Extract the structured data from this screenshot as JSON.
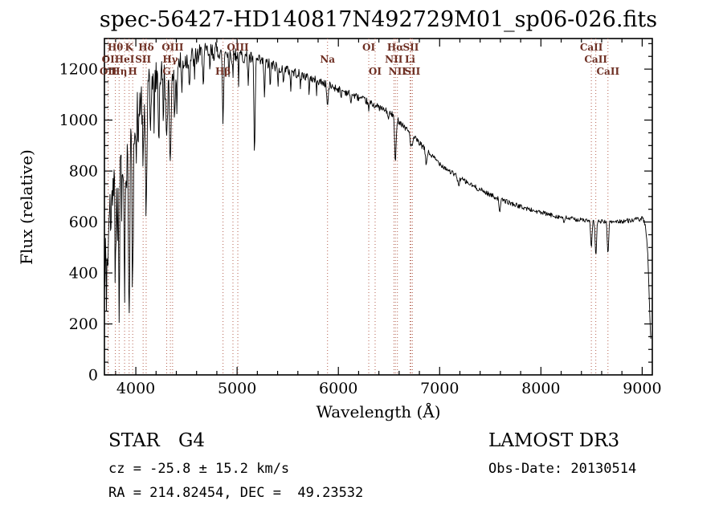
{
  "colors": {
    "background": "#ffffff",
    "axis": "#000000",
    "spectrum": "#000000",
    "marker_line": "#b4604f",
    "marker_label": "#6e2f23"
  },
  "footer": {
    "class_label": "STAR",
    "subclass": "G4",
    "cz": "cz = -25.8 ± 15.2 km/s",
    "ra_dec": "RA = 214.82454, DEC =  49.23532",
    "survey": "LAMOST DR3",
    "obs_date": "Obs-Date: 20130514"
  },
  "chart_data": {
    "type": "line",
    "title": "spec-56427-HD140817N492729M01_sp06-026.fits",
    "xlabel": "Wavelength (Å)",
    "ylabel": "Flux (relative)",
    "xlim": [
      3690,
      9100
    ],
    "ylim": [
      0,
      1320
    ],
    "xticks": [
      4000,
      5000,
      6000,
      7000,
      8000,
      9000
    ],
    "yticks": [
      0,
      200,
      400,
      600,
      800,
      1000,
      1200
    ],
    "x_minor": 200,
    "y_minor": 50,
    "legend": "none",
    "grid": false,
    "spectral_lines": [
      {
        "wavelength": 3798,
        "label": "Hθ",
        "row": 1
      },
      {
        "wavelength": 3934,
        "label": "K",
        "row": 1
      },
      {
        "wavelength": 4102,
        "label": "Hδ",
        "row": 1
      },
      {
        "wavelength": 4363,
        "label": "OIII",
        "row": 1
      },
      {
        "wavelength": 4959,
        "label": "",
        "row": 1
      },
      {
        "wavelength": 5007,
        "label": "OIII",
        "row": 1
      },
      {
        "wavelength": 6300,
        "label": "OI",
        "row": 1
      },
      {
        "wavelength": 6563,
        "label": "Hα",
        "row": 1
      },
      {
        "wavelength": 6716,
        "label": "SII",
        "row": 1
      },
      {
        "wavelength": 8498,
        "label": "CaII",
        "row": 1
      },
      {
        "wavelength": 3727,
        "label": "OI",
        "row": 2
      },
      {
        "wavelength": 3889,
        "label": "HeI",
        "row": 2
      },
      {
        "wavelength": 4072,
        "label": "SII",
        "row": 2
      },
      {
        "wavelength": 4341,
        "label": "Hγ",
        "row": 2
      },
      {
        "wavelength": 5893,
        "label": "Na",
        "row": 2
      },
      {
        "wavelength": 6548,
        "label": "NII",
        "row": 2
      },
      {
        "wavelength": 6708,
        "label": "Li",
        "row": 2
      },
      {
        "wavelength": 8542,
        "label": "CaII",
        "row": 2
      },
      {
        "wavelength": 3727,
        "label": "OII",
        "row": 3
      },
      {
        "wavelength": 3835,
        "label": "Hη",
        "row": 3
      },
      {
        "wavelength": 3969,
        "label": "H",
        "row": 3
      },
      {
        "wavelength": 4305,
        "label": "G",
        "row": 3
      },
      {
        "wavelength": 4861,
        "label": "Hβ",
        "row": 3
      },
      {
        "wavelength": 6363,
        "label": "OI",
        "row": 3
      },
      {
        "wavelength": 6583,
        "label": "NII",
        "row": 3
      },
      {
        "wavelength": 6731,
        "label": "SII",
        "row": 3
      },
      {
        "wavelength": 8662,
        "label": "CaII",
        "row": 3
      }
    ],
    "spectrum": {
      "seed": 42,
      "step": 5,
      "continuum": [
        [
          3690,
          300
        ],
        [
          3705,
          560
        ],
        [
          3720,
          700
        ],
        [
          3740,
          780
        ],
        [
          3760,
          820
        ],
        [
          3780,
          850
        ],
        [
          3800,
          865
        ],
        [
          3825,
          880
        ],
        [
          3850,
          900
        ],
        [
          3875,
          925
        ],
        [
          3900,
          950
        ],
        [
          3925,
          975
        ],
        [
          3950,
          995
        ],
        [
          3975,
          1015
        ],
        [
          4000,
          1040
        ],
        [
          4050,
          1080
        ],
        [
          4100,
          1112
        ],
        [
          4150,
          1140
        ],
        [
          4200,
          1163
        ],
        [
          4250,
          1180
        ],
        [
          4300,
          1194
        ],
        [
          4350,
          1206
        ],
        [
          4400,
          1216
        ],
        [
          4450,
          1226
        ],
        [
          4500,
          1236
        ],
        [
          4550,
          1244
        ],
        [
          4600,
          1251
        ],
        [
          4650,
          1257
        ],
        [
          4700,
          1263
        ],
        [
          4750,
          1268
        ],
        [
          4800,
          1272
        ],
        [
          4850,
          1275
        ],
        [
          4900,
          1270
        ],
        [
          4950,
          1264
        ],
        [
          5000,
          1258
        ],
        [
          5050,
          1252
        ],
        [
          5100,
          1246
        ],
        [
          5150,
          1240
        ],
        [
          5200,
          1233
        ],
        [
          5250,
          1227
        ],
        [
          5300,
          1221
        ],
        [
          5350,
          1215
        ],
        [
          5400,
          1208
        ],
        [
          5450,
          1202
        ],
        [
          5500,
          1195
        ],
        [
          5550,
          1189
        ],
        [
          5600,
          1182
        ],
        [
          5650,
          1175
        ],
        [
          5700,
          1168
        ],
        [
          5750,
          1161
        ],
        [
          5800,
          1154
        ],
        [
          5850,
          1146
        ],
        [
          5900,
          1138
        ],
        [
          5950,
          1130
        ],
        [
          6000,
          1122
        ],
        [
          6050,
          1114
        ],
        [
          6100,
          1106
        ],
        [
          6150,
          1097
        ],
        [
          6200,
          1088
        ],
        [
          6250,
          1079
        ],
        [
          6300,
          1070
        ],
        [
          6350,
          1060
        ],
        [
          6400,
          1050
        ],
        [
          6450,
          1040
        ],
        [
          6500,
          1029
        ],
        [
          6550,
          1017
        ],
        [
          6600,
          995
        ],
        [
          6650,
          975
        ],
        [
          6700,
          953
        ],
        [
          6750,
          931
        ],
        [
          6800,
          909
        ],
        [
          6850,
          888
        ],
        [
          6900,
          868
        ],
        [
          6950,
          849
        ],
        [
          7000,
          831
        ],
        [
          7050,
          814
        ],
        [
          7100,
          799
        ],
        [
          7150,
          785
        ],
        [
          7200,
          772
        ],
        [
          7250,
          760
        ],
        [
          7300,
          748
        ],
        [
          7350,
          737
        ],
        [
          7400,
          727
        ],
        [
          7450,
          717
        ],
        [
          7500,
          707
        ],
        [
          7550,
          698
        ],
        [
          7600,
          690
        ],
        [
          7650,
          682
        ],
        [
          7700,
          674
        ],
        [
          7750,
          667
        ],
        [
          7800,
          660
        ],
        [
          7850,
          654
        ],
        [
          7900,
          648
        ],
        [
          7950,
          642
        ],
        [
          8000,
          637
        ],
        [
          8050,
          632
        ],
        [
          8100,
          627
        ],
        [
          8150,
          623
        ],
        [
          8200,
          619
        ],
        [
          8250,
          616
        ],
        [
          8300,
          613
        ],
        [
          8350,
          610
        ],
        [
          8400,
          608
        ],
        [
          8450,
          606
        ],
        [
          8500,
          604
        ],
        [
          8550,
          603
        ],
        [
          8600,
          602
        ],
        [
          8650,
          601
        ],
        [
          8700,
          601
        ],
        [
          8750,
          602
        ],
        [
          8800,
          603
        ],
        [
          8850,
          605
        ],
        [
          8900,
          607
        ],
        [
          8950,
          610
        ],
        [
          9000,
          612
        ],
        [
          9030,
          595
        ],
        [
          9055,
          470
        ],
        [
          9075,
          230
        ],
        [
          9085,
          130
        ]
      ],
      "absorption": [
        [
          3710,
          260,
          5
        ],
        [
          3727,
          340,
          6
        ],
        [
          3750,
          300,
          5
        ],
        [
          3770,
          220,
          4
        ],
        [
          3798,
          430,
          6
        ],
        [
          3819,
          250,
          4
        ],
        [
          3835,
          560,
          6
        ],
        [
          3860,
          260,
          4
        ],
        [
          3889,
          600,
          6
        ],
        [
          3910,
          280,
          4
        ],
        [
          3934,
          700,
          7
        ],
        [
          3969,
          680,
          7
        ],
        [
          4005,
          210,
          4
        ],
        [
          4026,
          190,
          4
        ],
        [
          4072,
          300,
          6
        ],
        [
          4102,
          480,
          7
        ],
        [
          4144,
          190,
          4
        ],
        [
          4180,
          150,
          4
        ],
        [
          4227,
          240,
          5
        ],
        [
          4271,
          180,
          4
        ],
        [
          4305,
          300,
          8
        ],
        [
          4341,
          390,
          7
        ],
        [
          4383,
          250,
          5
        ],
        [
          4405,
          170,
          4
        ],
        [
          4455,
          130,
          4
        ],
        [
          4530,
          110,
          4
        ],
        [
          4580,
          90,
          4
        ],
        [
          4668,
          120,
          4
        ],
        [
          4730,
          80,
          4
        ],
        [
          4861,
          270,
          7
        ],
        [
          4920,
          100,
          4
        ],
        [
          4957,
          90,
          4
        ],
        [
          5015,
          100,
          4
        ],
        [
          5110,
          100,
          4
        ],
        [
          5172,
          380,
          6
        ],
        [
          5270,
          130,
          5
        ],
        [
          5328,
          90,
          4
        ],
        [
          5405,
          80,
          4
        ],
        [
          5455,
          60,
          4
        ],
        [
          5530,
          70,
          4
        ],
        [
          5625,
          50,
          4
        ],
        [
          5710,
          55,
          4
        ],
        [
          5785,
          45,
          4
        ],
        [
          5893,
          85,
          7
        ],
        [
          6025,
          35,
          4
        ],
        [
          6122,
          45,
          4
        ],
        [
          6300,
          40,
          4
        ],
        [
          6494,
          35,
          4
        ],
        [
          6563,
          185,
          7
        ],
        [
          6716,
          55,
          5
        ],
        [
          6731,
          50,
          5
        ],
        [
          6867,
          55,
          7
        ],
        [
          7186,
          30,
          8
        ],
        [
          7594,
          45,
          8
        ],
        [
          8227,
          25,
          6
        ],
        [
          8498,
          105,
          7
        ],
        [
          8542,
          135,
          7
        ],
        [
          8662,
          120,
          7
        ]
      ],
      "noise": [
        [
          3690,
          140
        ],
        [
          3900,
          125
        ],
        [
          4000,
          90
        ],
        [
          4150,
          70
        ],
        [
          4300,
          60
        ],
        [
          4500,
          48
        ],
        [
          4700,
          40
        ],
        [
          4900,
          34
        ],
        [
          5100,
          28
        ],
        [
          5300,
          24
        ],
        [
          5500,
          20
        ],
        [
          5700,
          18
        ],
        [
          5900,
          16
        ],
        [
          6100,
          14
        ],
        [
          6400,
          13
        ],
        [
          6700,
          12
        ],
        [
          7000,
          11
        ],
        [
          7400,
          10
        ],
        [
          7800,
          9
        ],
        [
          8200,
          9
        ],
        [
          8600,
          8
        ],
        [
          9000,
          10
        ],
        [
          9085,
          14
        ]
      ]
    }
  }
}
